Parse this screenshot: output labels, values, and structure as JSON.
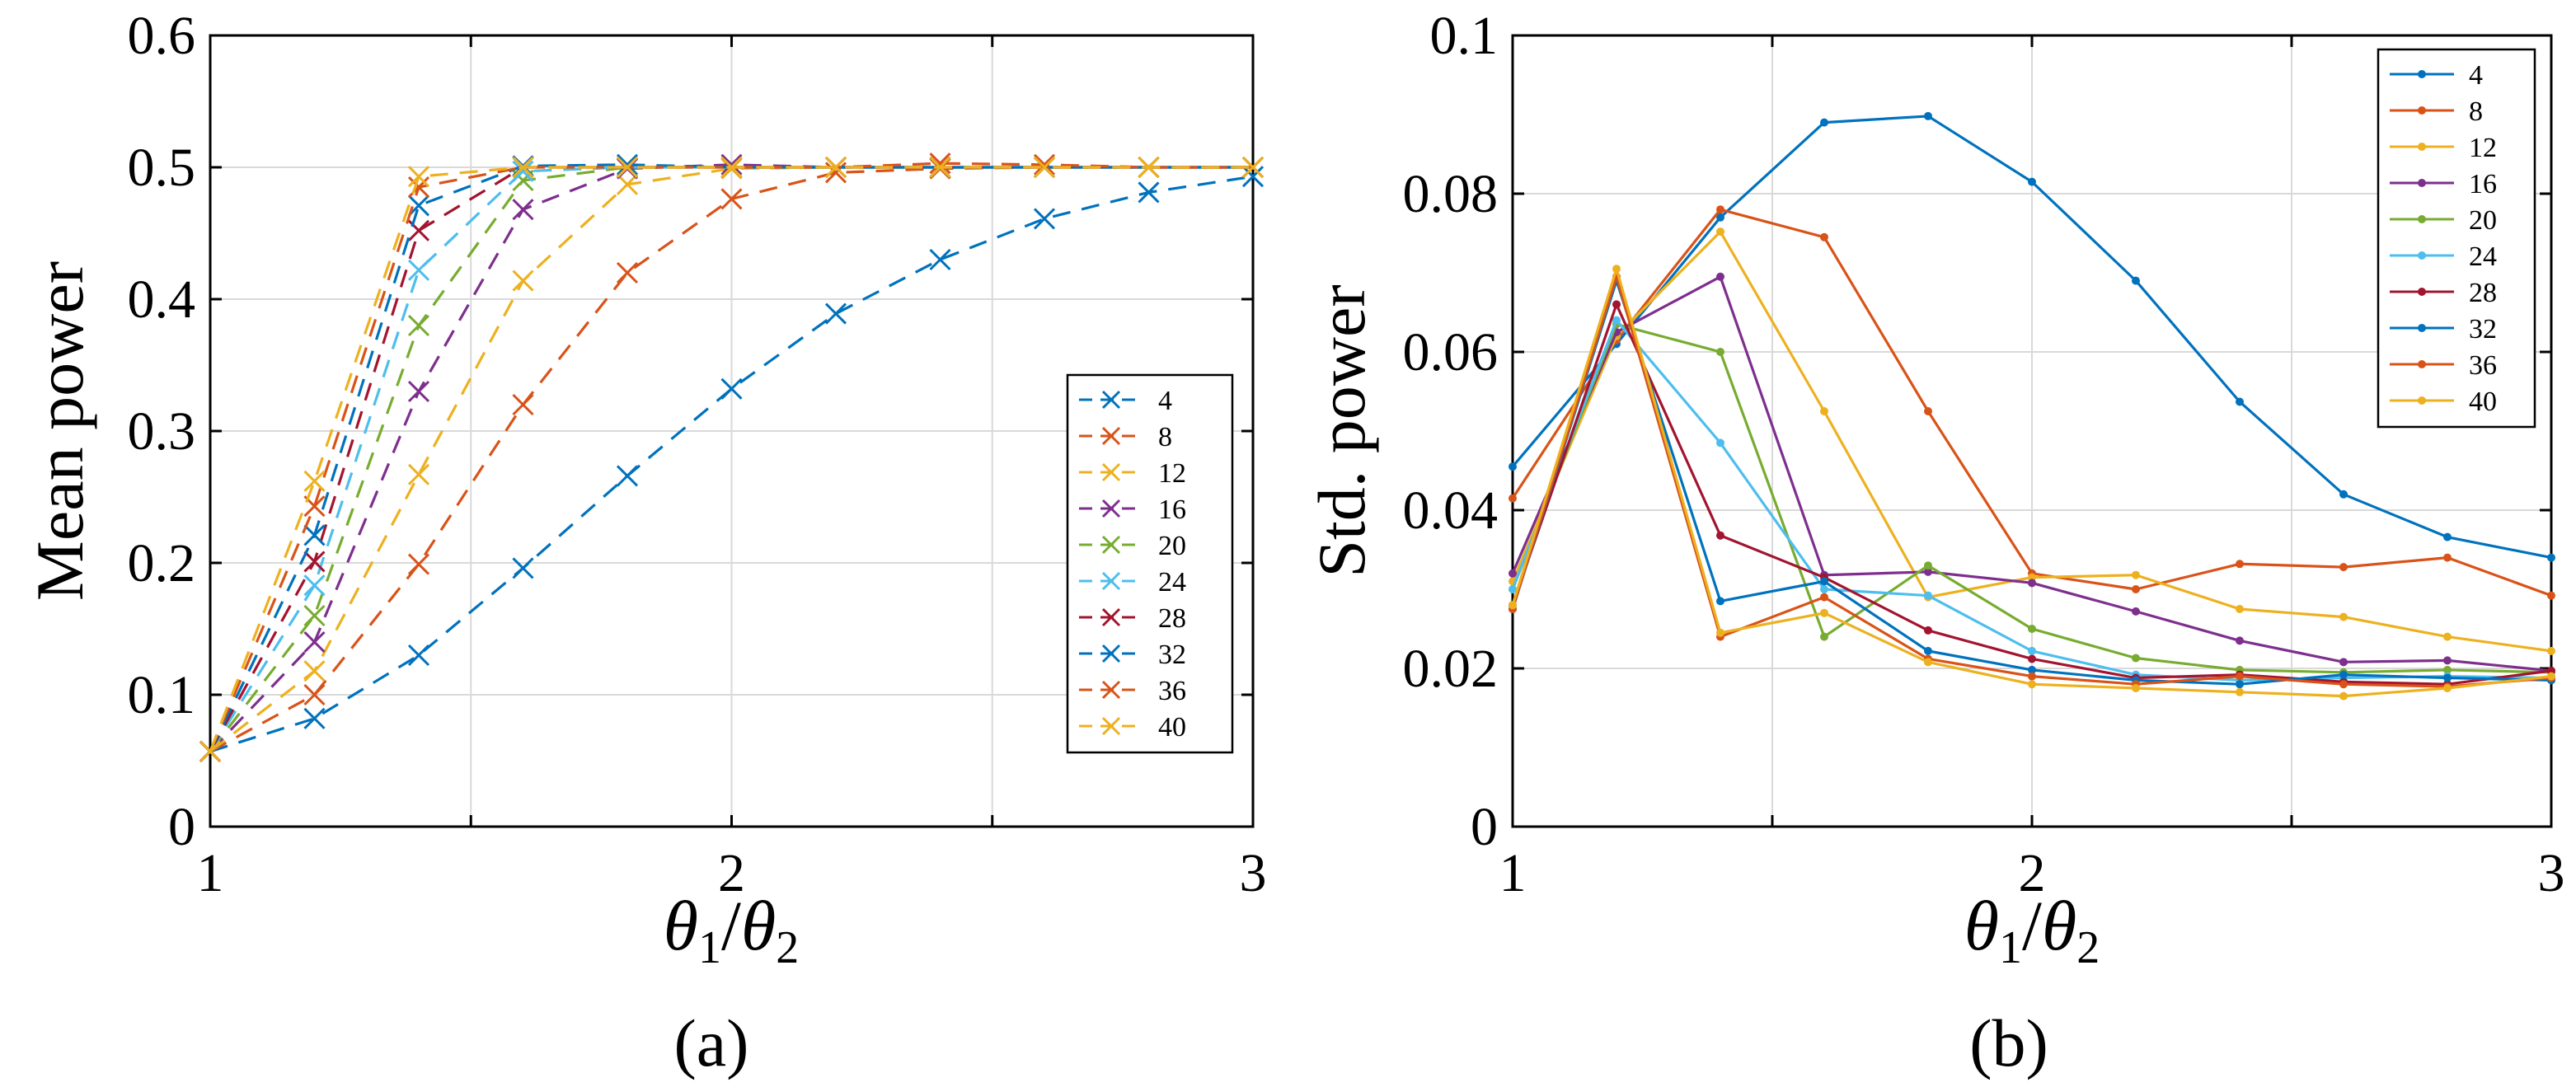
{
  "chart_data": [
    {
      "panel": "(a)",
      "type": "line",
      "style": "dashed-x-markers",
      "xlabel_main": "θ1/θ2",
      "xlabel": {
        "a": "θ",
        "a_sub": "1",
        "slash": "/",
        "b": "θ",
        "b_sub": "2"
      },
      "ylabel": "Mean power",
      "xlim": [
        1,
        3
      ],
      "ylim": [
        0,
        0.6
      ],
      "xticks": [
        1,
        2,
        3
      ],
      "yticks": [
        0,
        0.1,
        0.2,
        0.3,
        0.4,
        0.5,
        0.6
      ],
      "xtick_labels": [
        "1",
        "2",
        "3"
      ],
      "ytick_labels": [
        "0",
        "0.1",
        "0.2",
        "0.3",
        "0.4",
        "0.5",
        "0.6"
      ],
      "grid": true,
      "legend_position": "right-middle",
      "x": [
        1.0,
        1.2,
        1.4,
        1.6,
        1.8,
        2.0,
        2.2,
        2.4,
        2.6,
        2.8,
        3.0
      ],
      "series": [
        {
          "name": "4",
          "color": "#0072BD",
          "values": [
            0.057,
            0.082,
            0.13,
            0.196,
            0.266,
            0.332,
            0.389,
            0.43,
            0.461,
            0.481,
            0.493
          ]
        },
        {
          "name": "8",
          "color": "#D95319",
          "values": [
            0.057,
            0.1,
            0.199,
            0.32,
            0.42,
            0.476,
            0.496,
            0.499,
            0.5,
            0.5,
            0.5
          ]
        },
        {
          "name": "12",
          "color": "#EDB120",
          "values": [
            0.057,
            0.118,
            0.267,
            0.414,
            0.487,
            0.499,
            0.5,
            0.5,
            0.5,
            0.5,
            0.5
          ]
        },
        {
          "name": "16",
          "color": "#7E2F8E",
          "values": [
            0.057,
            0.14,
            0.33,
            0.468,
            0.499,
            0.502,
            0.5,
            0.5,
            0.5,
            0.5,
            0.5
          ]
        },
        {
          "name": "20",
          "color": "#77AC30",
          "values": [
            0.057,
            0.16,
            0.38,
            0.49,
            0.5,
            0.5,
            0.5,
            0.5,
            0.5,
            0.5,
            0.5
          ]
        },
        {
          "name": "24",
          "color": "#4DBEEE",
          "values": [
            0.057,
            0.183,
            0.422,
            0.497,
            0.5,
            0.5,
            0.5,
            0.5,
            0.5,
            0.5,
            0.5
          ]
        },
        {
          "name": "28",
          "color": "#A2142F",
          "values": [
            0.057,
            0.201,
            0.452,
            0.5,
            0.5,
            0.5,
            0.5,
            0.5,
            0.5,
            0.5,
            0.5
          ]
        },
        {
          "name": "32",
          "color": "#0072BD",
          "values": [
            0.057,
            0.221,
            0.471,
            0.501,
            0.502,
            0.5,
            0.5,
            0.5,
            0.5,
            0.5,
            0.5
          ]
        },
        {
          "name": "36",
          "color": "#D95319",
          "values": [
            0.057,
            0.243,
            0.485,
            0.5,
            0.5,
            0.5,
            0.5,
            0.503,
            0.502,
            0.5,
            0.5
          ]
        },
        {
          "name": "40",
          "color": "#EDB120",
          "values": [
            0.057,
            0.262,
            0.493,
            0.5,
            0.5,
            0.5,
            0.5,
            0.5,
            0.5,
            0.5,
            0.5
          ]
        }
      ]
    },
    {
      "panel": "(b)",
      "type": "line",
      "style": "solid-dot-markers",
      "xlabel_main": "θ1/θ2",
      "xlabel": {
        "a": "θ",
        "a_sub": "1",
        "slash": "/",
        "b": "θ",
        "b_sub": "2"
      },
      "ylabel": "Std. power",
      "xlim": [
        1,
        3
      ],
      "ylim": [
        0,
        0.1
      ],
      "xticks": [
        1,
        2,
        3
      ],
      "yticks": [
        0,
        0.02,
        0.04,
        0.06,
        0.08,
        0.1
      ],
      "xtick_labels": [
        "1",
        "2",
        "3"
      ],
      "ytick_labels": [
        "0",
        "0.02",
        "0.04",
        "0.06",
        "0.08",
        "0.1"
      ],
      "grid": true,
      "legend_position": "top-right",
      "x": [
        1.0,
        1.2,
        1.4,
        1.6,
        1.8,
        2.0,
        2.2,
        2.4,
        2.6,
        2.8,
        3.0
      ],
      "series": [
        {
          "name": "4",
          "color": "#0072BD",
          "values": [
            0.0455,
            0.061,
            0.077,
            0.089,
            0.0898,
            0.0815,
            0.069,
            0.0537,
            0.042,
            0.0366,
            0.034
          ]
        },
        {
          "name": "8",
          "color": "#D95319",
          "values": [
            0.0415,
            0.0615,
            0.078,
            0.0745,
            0.0525,
            0.032,
            0.03,
            0.0332,
            0.0328,
            0.034,
            0.0292
          ]
        },
        {
          "name": "12",
          "color": "#EDB120",
          "values": [
            0.031,
            0.062,
            0.0752,
            0.0525,
            0.029,
            0.0315,
            0.0318,
            0.0275,
            0.0265,
            0.024,
            0.0222
          ]
        },
        {
          "name": "16",
          "color": "#7E2F8E",
          "values": [
            0.032,
            0.0625,
            0.0695,
            0.0318,
            0.0322,
            0.0308,
            0.0272,
            0.0235,
            0.0208,
            0.021,
            0.0197
          ]
        },
        {
          "name": "20",
          "color": "#77AC30",
          "values": [
            0.03,
            0.0635,
            0.06,
            0.024,
            0.033,
            0.025,
            0.0213,
            0.0198,
            0.0195,
            0.0198,
            0.0195
          ]
        },
        {
          "name": "24",
          "color": "#4DBEEE",
          "values": [
            0.03,
            0.064,
            0.0485,
            0.03,
            0.0292,
            0.0222,
            0.0192,
            0.0185,
            0.0188,
            0.019,
            0.0188
          ]
        },
        {
          "name": "28",
          "color": "#A2142F",
          "values": [
            0.028,
            0.066,
            0.0368,
            0.0315,
            0.0248,
            0.0212,
            0.0188,
            0.0192,
            0.0183,
            0.018,
            0.0197
          ]
        },
        {
          "name": "32",
          "color": "#0072BD",
          "values": [
            0.0275,
            0.069,
            0.0285,
            0.031,
            0.0222,
            0.0198,
            0.0185,
            0.018,
            0.0192,
            0.0188,
            0.0185
          ]
        },
        {
          "name": "36",
          "color": "#D95319",
          "values": [
            0.0275,
            0.0695,
            0.024,
            0.029,
            0.0212,
            0.019,
            0.018,
            0.019,
            0.018,
            0.0177,
            0.0188
          ]
        },
        {
          "name": "40",
          "color": "#EDB120",
          "values": [
            0.028,
            0.0705,
            0.0245,
            0.027,
            0.0208,
            0.018,
            0.0175,
            0.017,
            0.0165,
            0.0175,
            0.019
          ]
        }
      ]
    }
  ]
}
